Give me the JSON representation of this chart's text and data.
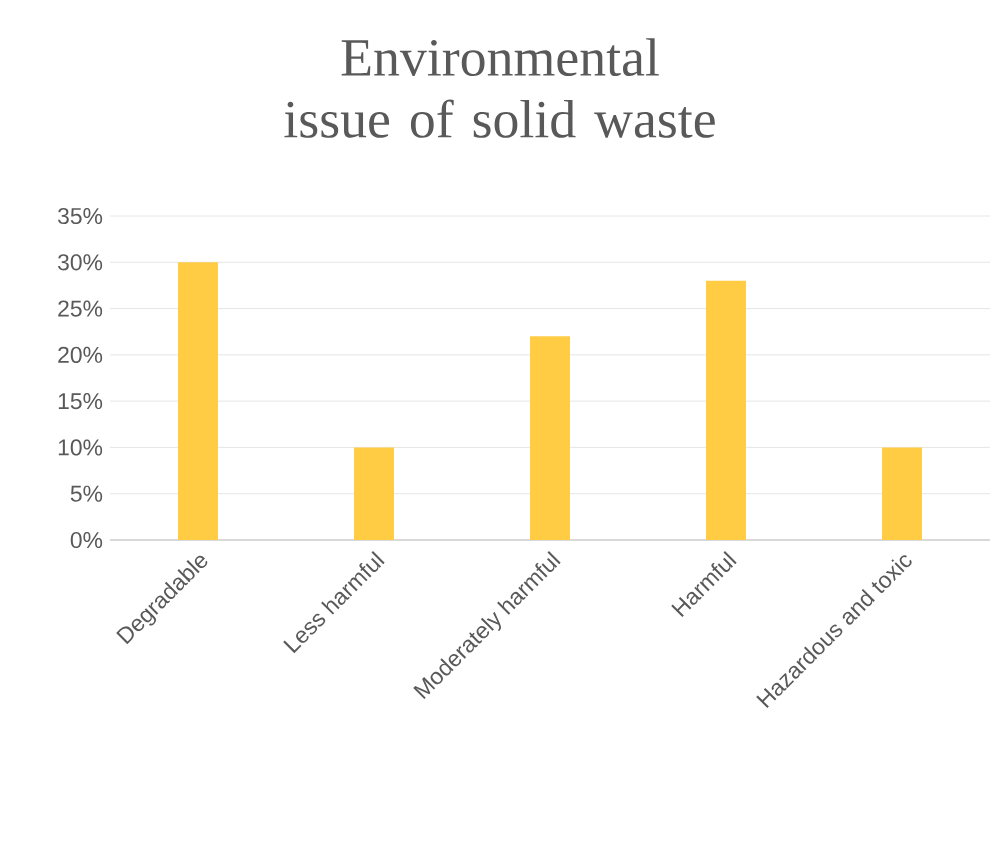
{
  "chart_data": {
    "type": "bar",
    "title": "Environmental issue of solid waste",
    "categories": [
      "Degradable",
      "Less harmful",
      "Moderately harmful",
      "Harmful",
      "Hazardous and toxic"
    ],
    "values": [
      30,
      10,
      22,
      28,
      10
    ],
    "color": "#ffcc44",
    "ylim": [
      0,
      35
    ],
    "yticks": [
      {
        "value": 0,
        "label": "0%"
      },
      {
        "value": 5,
        "label": "5%"
      },
      {
        "value": 10,
        "label": "10%"
      },
      {
        "value": 15,
        "label": "15%"
      },
      {
        "value": 20,
        "label": "20%"
      },
      {
        "value": 25,
        "label": "25%"
      },
      {
        "value": 30,
        "label": "30%"
      },
      {
        "value": 35,
        "label": "35%"
      }
    ],
    "grid": "y"
  }
}
